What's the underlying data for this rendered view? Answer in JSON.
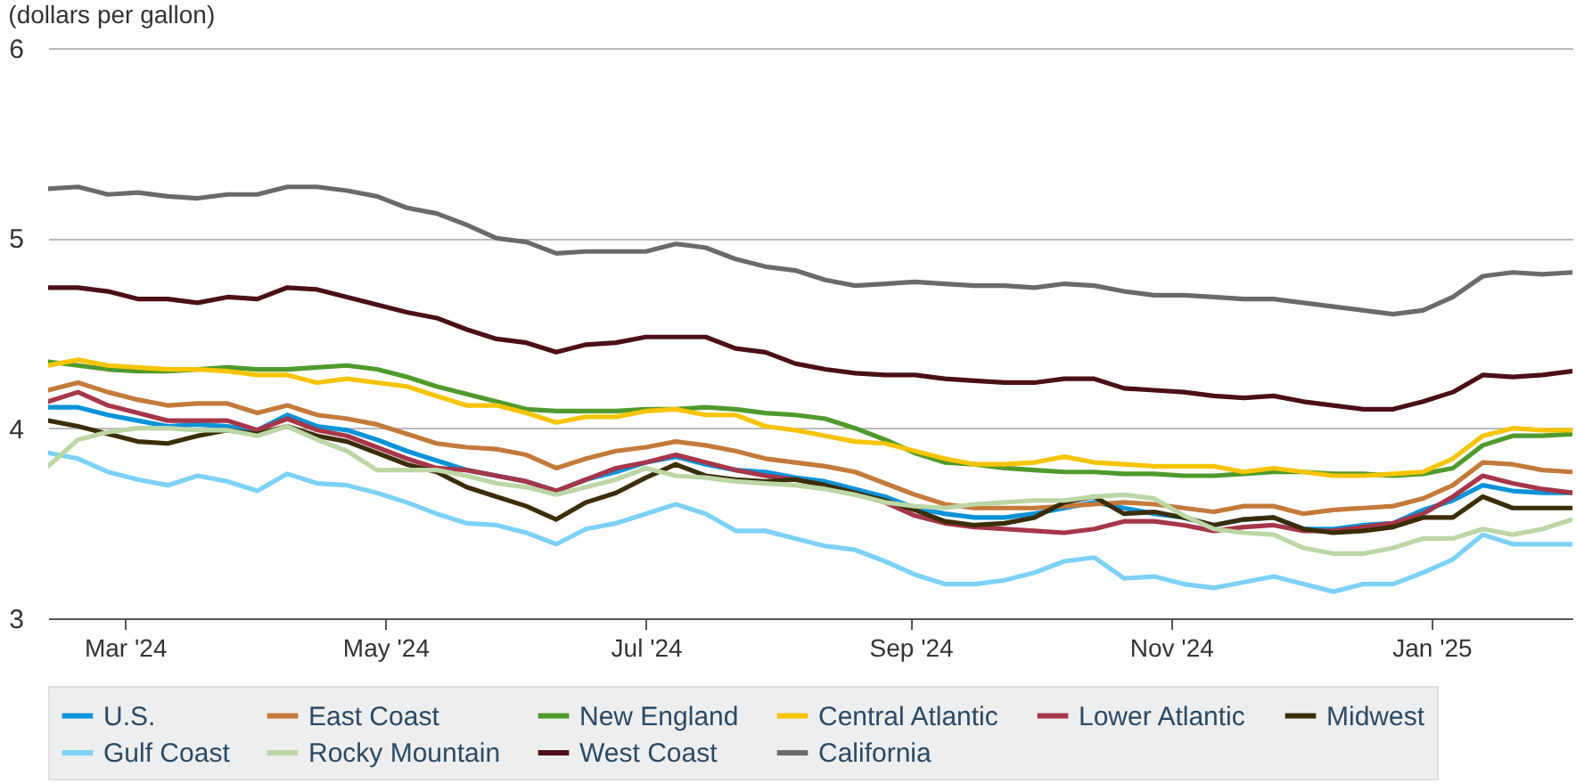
{
  "chart_data": {
    "type": "line",
    "title": "(dollars per gallon)",
    "x": [
      "2024-02-12",
      "2024-02-19",
      "2024-02-26",
      "2024-03-04",
      "2024-03-11",
      "2024-03-18",
      "2024-03-25",
      "2024-04-01",
      "2024-04-08",
      "2024-04-15",
      "2024-04-22",
      "2024-04-29",
      "2024-05-06",
      "2024-05-13",
      "2024-05-20",
      "2024-05-27",
      "2024-06-03",
      "2024-06-10",
      "2024-06-17",
      "2024-06-24",
      "2024-07-01",
      "2024-07-08",
      "2024-07-15",
      "2024-07-22",
      "2024-07-29",
      "2024-08-05",
      "2024-08-12",
      "2024-08-19",
      "2024-08-26",
      "2024-09-02",
      "2024-09-09",
      "2024-09-16",
      "2024-09-23",
      "2024-09-30",
      "2024-10-07",
      "2024-10-14",
      "2024-10-21",
      "2024-10-28",
      "2024-11-04",
      "2024-11-11",
      "2024-11-18",
      "2024-11-25",
      "2024-12-02",
      "2024-12-09",
      "2024-12-16",
      "2024-12-23",
      "2024-12-30",
      "2025-01-06",
      "2025-01-13",
      "2025-01-20",
      "2025-01-27",
      "2025-02-03"
    ],
    "xlim": [
      "2024-02-12",
      "2025-02-03"
    ],
    "xticks": [
      {
        "value": "2024-03-01",
        "label": "Mar '24"
      },
      {
        "value": "2024-05-01",
        "label": "May '24"
      },
      {
        "value": "2024-07-01",
        "label": "Jul '24"
      },
      {
        "value": "2024-09-01",
        "label": "Sep '24"
      },
      {
        "value": "2024-11-01",
        "label": "Nov '24"
      },
      {
        "value": "2025-01-01",
        "label": "Jan '25"
      }
    ],
    "ylim": [
      3,
      6
    ],
    "yticks": [
      3,
      4,
      5,
      6
    ],
    "grid": "y",
    "legend": "bottom",
    "series": [
      {
        "name": "U.S.",
        "color": "#0a93d8",
        "values": [
          4.11,
          4.11,
          4.07,
          4.04,
          4.01,
          4.02,
          4.01,
          3.99,
          4.07,
          4.01,
          3.99,
          3.94,
          3.88,
          3.83,
          3.78,
          3.75,
          3.72,
          3.67,
          3.73,
          3.77,
          3.82,
          3.85,
          3.81,
          3.78,
          3.77,
          3.74,
          3.72,
          3.68,
          3.64,
          3.58,
          3.55,
          3.53,
          3.53,
          3.55,
          3.58,
          3.61,
          3.58,
          3.55,
          3.53,
          3.49,
          3.52,
          3.53,
          3.47,
          3.47,
          3.49,
          3.5,
          3.57,
          3.62,
          3.7,
          3.67,
          3.66,
          3.66
        ]
      },
      {
        "name": "East Coast",
        "color": "#c47a3a",
        "values": [
          4.2,
          4.24,
          4.19,
          4.15,
          4.12,
          4.13,
          4.13,
          4.08,
          4.12,
          4.07,
          4.05,
          4.02,
          3.97,
          3.92,
          3.9,
          3.89,
          3.86,
          3.79,
          3.84,
          3.88,
          3.9,
          3.93,
          3.91,
          3.88,
          3.84,
          3.82,
          3.8,
          3.77,
          3.71,
          3.65,
          3.6,
          3.58,
          3.58,
          3.58,
          3.59,
          3.6,
          3.61,
          3.6,
          3.58,
          3.56,
          3.59,
          3.59,
          3.55,
          3.57,
          3.58,
          3.59,
          3.63,
          3.7,
          3.82,
          3.81,
          3.78,
          3.77
        ]
      },
      {
        "name": "New England",
        "color": "#4f9a2c",
        "values": [
          4.35,
          4.33,
          4.31,
          4.3,
          4.3,
          4.31,
          4.32,
          4.31,
          4.31,
          4.32,
          4.33,
          4.31,
          4.27,
          4.22,
          4.18,
          4.14,
          4.1,
          4.09,
          4.09,
          4.09,
          4.1,
          4.1,
          4.11,
          4.1,
          4.08,
          4.07,
          4.05,
          4.0,
          3.94,
          3.87,
          3.82,
          3.81,
          3.79,
          3.78,
          3.77,
          3.77,
          3.76,
          3.76,
          3.75,
          3.75,
          3.76,
          3.77,
          3.77,
          3.76,
          3.76,
          3.75,
          3.76,
          3.79,
          3.91,
          3.96,
          3.96,
          3.97
        ]
      },
      {
        "name": "Central Atlantic",
        "color": "#f6c400",
        "values": [
          4.33,
          4.36,
          4.33,
          4.32,
          4.31,
          4.31,
          4.3,
          4.28,
          4.28,
          4.24,
          4.26,
          4.24,
          4.22,
          4.17,
          4.12,
          4.12,
          4.08,
          4.03,
          4.06,
          4.06,
          4.09,
          4.1,
          4.07,
          4.07,
          4.01,
          3.99,
          3.96,
          3.93,
          3.92,
          3.88,
          3.84,
          3.81,
          3.81,
          3.82,
          3.85,
          3.82,
          3.81,
          3.8,
          3.8,
          3.8,
          3.77,
          3.79,
          3.77,
          3.75,
          3.75,
          3.76,
          3.77,
          3.84,
          3.96,
          4.0,
          3.99,
          3.99
        ]
      },
      {
        "name": "Lower Atlantic",
        "color": "#a6364a",
        "values": [
          4.14,
          4.19,
          4.12,
          4.08,
          4.04,
          4.04,
          4.04,
          3.99,
          4.05,
          3.99,
          3.96,
          3.9,
          3.84,
          3.79,
          3.78,
          3.75,
          3.72,
          3.67,
          3.73,
          3.79,
          3.82,
          3.86,
          3.82,
          3.78,
          3.75,
          3.73,
          3.7,
          3.66,
          3.61,
          3.54,
          3.5,
          3.48,
          3.47,
          3.46,
          3.45,
          3.47,
          3.51,
          3.51,
          3.49,
          3.46,
          3.48,
          3.49,
          3.46,
          3.46,
          3.48,
          3.5,
          3.55,
          3.64,
          3.75,
          3.71,
          3.68,
          3.66
        ]
      },
      {
        "name": "Midwest",
        "color": "#3a2d08",
        "values": [
          4.04,
          4.01,
          3.97,
          3.93,
          3.92,
          3.96,
          3.99,
          3.97,
          4.01,
          3.96,
          3.93,
          3.87,
          3.81,
          3.77,
          3.69,
          3.64,
          3.59,
          3.52,
          3.61,
          3.66,
          3.74,
          3.81,
          3.75,
          3.73,
          3.72,
          3.73,
          3.7,
          3.66,
          3.62,
          3.57,
          3.51,
          3.49,
          3.5,
          3.53,
          3.61,
          3.64,
          3.55,
          3.56,
          3.53,
          3.49,
          3.52,
          3.53,
          3.47,
          3.45,
          3.46,
          3.48,
          3.53,
          3.53,
          3.64,
          3.58,
          3.58,
          3.58
        ]
      },
      {
        "name": "Gulf Coast",
        "color": "#7dd1f6",
        "values": [
          3.87,
          3.84,
          3.77,
          3.73,
          3.7,
          3.75,
          3.72,
          3.67,
          3.76,
          3.71,
          3.7,
          3.66,
          3.61,
          3.55,
          3.5,
          3.49,
          3.45,
          3.39,
          3.47,
          3.5,
          3.55,
          3.6,
          3.55,
          3.46,
          3.46,
          3.42,
          3.38,
          3.36,
          3.3,
          3.23,
          3.18,
          3.18,
          3.2,
          3.24,
          3.3,
          3.32,
          3.21,
          3.22,
          3.18,
          3.16,
          3.19,
          3.22,
          3.18,
          3.14,
          3.18,
          3.18,
          3.24,
          3.31,
          3.44,
          3.39,
          3.39,
          3.39
        ]
      },
      {
        "name": "Rocky Mountain",
        "color": "#bcd6a6",
        "values": [
          3.8,
          3.94,
          3.98,
          4.0,
          4.0,
          3.99,
          3.99,
          3.96,
          4.01,
          3.94,
          3.88,
          3.78,
          3.78,
          3.78,
          3.75,
          3.71,
          3.69,
          3.65,
          3.69,
          3.73,
          3.79,
          3.75,
          3.74,
          3.72,
          3.71,
          3.7,
          3.68,
          3.65,
          3.61,
          3.59,
          3.58,
          3.6,
          3.61,
          3.62,
          3.62,
          3.64,
          3.65,
          3.63,
          3.54,
          3.47,
          3.45,
          3.44,
          3.37,
          3.34,
          3.34,
          3.37,
          3.42,
          3.42,
          3.47,
          3.44,
          3.47,
          3.52
        ]
      },
      {
        "name": "West Coast",
        "color": "#4a1016",
        "values": [
          4.74,
          4.74,
          4.72,
          4.68,
          4.68,
          4.66,
          4.69,
          4.68,
          4.74,
          4.73,
          4.69,
          4.65,
          4.61,
          4.58,
          4.52,
          4.47,
          4.45,
          4.4,
          4.44,
          4.45,
          4.48,
          4.48,
          4.48,
          4.42,
          4.4,
          4.34,
          4.31,
          4.29,
          4.28,
          4.28,
          4.26,
          4.25,
          4.24,
          4.24,
          4.26,
          4.26,
          4.21,
          4.2,
          4.19,
          4.17,
          4.16,
          4.17,
          4.14,
          4.12,
          4.1,
          4.1,
          4.14,
          4.19,
          4.28,
          4.27,
          4.28,
          4.3
        ]
      },
      {
        "name": "California",
        "color": "#6a6a6a",
        "values": [
          5.26,
          5.27,
          5.23,
          5.24,
          5.22,
          5.21,
          5.23,
          5.23,
          5.27,
          5.27,
          5.25,
          5.22,
          5.16,
          5.13,
          5.07,
          5.0,
          4.98,
          4.92,
          4.93,
          4.93,
          4.93,
          4.97,
          4.95,
          4.89,
          4.85,
          4.83,
          4.78,
          4.75,
          4.76,
          4.77,
          4.76,
          4.75,
          4.75,
          4.74,
          4.76,
          4.75,
          4.72,
          4.7,
          4.7,
          4.69,
          4.68,
          4.68,
          4.66,
          4.64,
          4.62,
          4.6,
          4.62,
          4.69,
          4.8,
          4.82,
          4.81,
          4.82
        ]
      }
    ]
  }
}
